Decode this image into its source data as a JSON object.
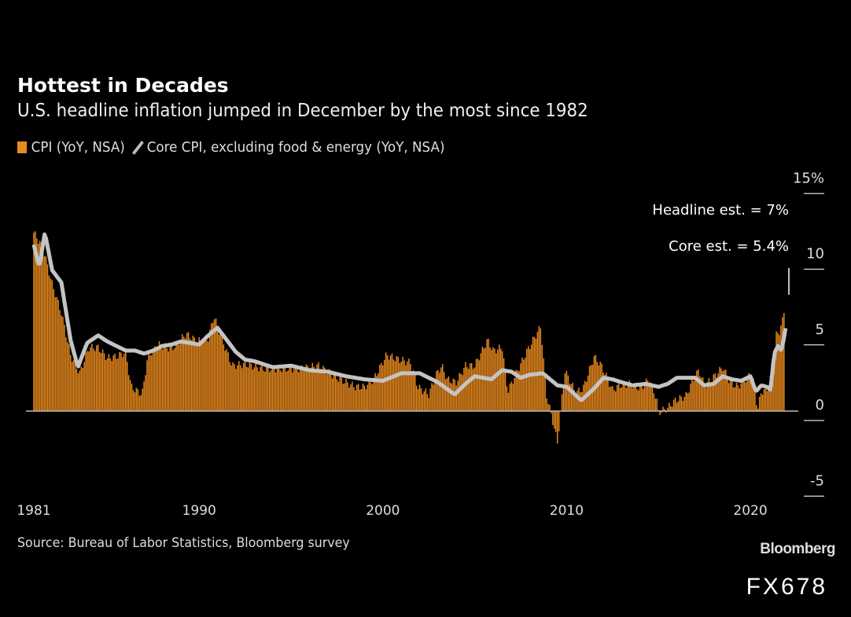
{
  "chart_data": {
    "type": "bar",
    "title": "Hottest in Decades",
    "subtitle": "U.S. headline inflation jumped in December by the most since 1982",
    "legend": {
      "placement": "top-left",
      "entries": [
        "CPI (YoY, NSA)",
        "Core CPI, excluding food & energy (YoY, NSA)"
      ]
    },
    "x_ticks": [
      "1981",
      "1990",
      "2000",
      "2010",
      "2020"
    ],
    "y_ticks": [
      "15%",
      "10",
      "5",
      "0",
      "-5"
    ],
    "xlim": [
      1981,
      2022
    ],
    "ylim": [
      -5,
      15
    ],
    "grid": false,
    "y_axis_side": "right",
    "colors": {
      "cpi": "#e8891e",
      "core": "#c4c4c4",
      "background": "#000000"
    },
    "series": [
      {
        "name": "CPI (YoY, NSA)",
        "type": "bar",
        "points": [
          [
            1981.0,
            11.8
          ],
          [
            1981.5,
            10.8
          ],
          [
            1982.0,
            8.4
          ],
          [
            1982.5,
            6.5
          ],
          [
            1983.0,
            3.7
          ],
          [
            1983.5,
            2.5
          ],
          [
            1984.0,
            4.2
          ],
          [
            1984.5,
            4.2
          ],
          [
            1985.0,
            3.5
          ],
          [
            1985.5,
            3.6
          ],
          [
            1986.0,
            3.9
          ],
          [
            1986.3,
            1.6
          ],
          [
            1986.9,
            1.1
          ],
          [
            1987.2,
            3.6
          ],
          [
            1987.8,
            4.4
          ],
          [
            1988.5,
            4.1
          ],
          [
            1989.3,
            5.1
          ],
          [
            1989.9,
            4.6
          ],
          [
            1990.5,
            4.8
          ],
          [
            1990.8,
            6.3
          ],
          [
            1991.2,
            4.9
          ],
          [
            1991.8,
            3.0
          ],
          [
            1992.5,
            3.1
          ],
          [
            1993.5,
            2.8
          ],
          [
            1994.5,
            2.8
          ],
          [
            1995.5,
            2.8
          ],
          [
            1996.5,
            3.0
          ],
          [
            1997.5,
            2.2
          ],
          [
            1998.5,
            1.6
          ],
          [
            1999.0,
            1.6
          ],
          [
            1999.5,
            2.1
          ],
          [
            2000.2,
            3.7
          ],
          [
            2000.9,
            3.4
          ],
          [
            2001.5,
            3.2
          ],
          [
            2001.9,
            1.6
          ],
          [
            2002.5,
            1.1
          ],
          [
            2002.9,
            2.4
          ],
          [
            2003.2,
            3.0
          ],
          [
            2003.5,
            2.1
          ],
          [
            2004.0,
            1.9
          ],
          [
            2004.5,
            3.0
          ],
          [
            2005.0,
            3.0
          ],
          [
            2005.7,
            4.7
          ],
          [
            2006.0,
            4.0
          ],
          [
            2006.5,
            4.2
          ],
          [
            2006.8,
            1.3
          ],
          [
            2007.3,
            2.6
          ],
          [
            2007.9,
            4.1
          ],
          [
            2008.6,
            5.6
          ],
          [
            2008.9,
            1.1
          ],
          [
            2009.2,
            -0.4
          ],
          [
            2009.5,
            -2.1
          ],
          [
            2009.9,
            2.7
          ],
          [
            2010.5,
            1.2
          ],
          [
            2010.9,
            1.5
          ],
          [
            2011.5,
            3.6
          ],
          [
            2011.9,
            3.0
          ],
          [
            2012.5,
            1.4
          ],
          [
            2012.9,
            1.7
          ],
          [
            2013.5,
            1.8
          ],
          [
            2014.0,
            1.5
          ],
          [
            2014.5,
            2.1
          ],
          [
            2014.9,
            0.8
          ],
          [
            2015.0,
            -0.1
          ],
          [
            2015.5,
            0.2
          ],
          [
            2015.9,
            0.7
          ],
          [
            2016.5,
            1.0
          ],
          [
            2016.9,
            2.1
          ],
          [
            2017.2,
            2.7
          ],
          [
            2017.5,
            1.7
          ],
          [
            2017.9,
            2.1
          ],
          [
            2018.5,
            2.9
          ],
          [
            2018.9,
            1.9
          ],
          [
            2019.3,
            1.6
          ],
          [
            2019.9,
            2.3
          ],
          [
            2020.1,
            2.5
          ],
          [
            2020.4,
            0.1
          ],
          [
            2020.6,
            1.3
          ],
          [
            2020.9,
            1.4
          ],
          [
            2021.2,
            2.6
          ],
          [
            2021.4,
            5.0
          ],
          [
            2021.6,
            5.3
          ],
          [
            2021.8,
            6.2
          ],
          [
            2021.85,
            6.8
          ]
        ]
      },
      {
        "name": "Core CPI, excluding food & energy (YoY, NSA)",
        "type": "line",
        "points": [
          [
            1981.0,
            11.0
          ],
          [
            1981.3,
            9.5
          ],
          [
            1981.6,
            11.8
          ],
          [
            1982.0,
            9.3
          ],
          [
            1982.5,
            8.5
          ],
          [
            1983.0,
            4.7
          ],
          [
            1983.4,
            2.9
          ],
          [
            1983.9,
            4.5
          ],
          [
            1984.5,
            5.0
          ],
          [
            1985.0,
            4.6
          ],
          [
            1985.5,
            4.3
          ],
          [
            1986.0,
            4.0
          ],
          [
            1986.5,
            4.0
          ],
          [
            1987.0,
            3.8
          ],
          [
            1987.5,
            4.0
          ],
          [
            1988.0,
            4.3
          ],
          [
            1988.5,
            4.4
          ],
          [
            1989.0,
            4.6
          ],
          [
            1989.5,
            4.5
          ],
          [
            1990.0,
            4.4
          ],
          [
            1990.5,
            5.0
          ],
          [
            1991.0,
            5.5
          ],
          [
            1991.5,
            4.7
          ],
          [
            1992.0,
            3.9
          ],
          [
            1992.5,
            3.4
          ],
          [
            1993.0,
            3.3
          ],
          [
            1994.0,
            2.9
          ],
          [
            1995.0,
            3.0
          ],
          [
            1996.0,
            2.7
          ],
          [
            1997.0,
            2.6
          ],
          [
            1998.0,
            2.3
          ],
          [
            1999.0,
            2.1
          ],
          [
            2000.0,
            2.0
          ],
          [
            2001.0,
            2.5
          ],
          [
            2002.0,
            2.5
          ],
          [
            2002.5,
            2.2
          ],
          [
            2003.0,
            1.9
          ],
          [
            2003.9,
            1.1
          ],
          [
            2004.5,
            1.8
          ],
          [
            2005.0,
            2.3
          ],
          [
            2005.9,
            2.1
          ],
          [
            2006.5,
            2.7
          ],
          [
            2007.0,
            2.6
          ],
          [
            2007.5,
            2.2
          ],
          [
            2008.0,
            2.4
          ],
          [
            2008.7,
            2.5
          ],
          [
            2009.5,
            1.7
          ],
          [
            2010.0,
            1.6
          ],
          [
            2010.8,
            0.7
          ],
          [
            2011.5,
            1.5
          ],
          [
            2012.0,
            2.2
          ],
          [
            2012.5,
            2.1
          ],
          [
            2013.0,
            1.9
          ],
          [
            2013.6,
            1.7
          ],
          [
            2014.3,
            1.8
          ],
          [
            2015.0,
            1.6
          ],
          [
            2015.5,
            1.8
          ],
          [
            2016.0,
            2.2
          ],
          [
            2016.5,
            2.2
          ],
          [
            2017.0,
            2.2
          ],
          [
            2017.5,
            1.7
          ],
          [
            2018.0,
            1.8
          ],
          [
            2018.5,
            2.3
          ],
          [
            2019.0,
            2.1
          ],
          [
            2019.5,
            2.0
          ],
          [
            2020.0,
            2.3
          ],
          [
            2020.3,
            1.3
          ],
          [
            2020.6,
            1.7
          ],
          [
            2020.9,
            1.6
          ],
          [
            2021.1,
            1.4
          ],
          [
            2021.3,
            3.8
          ],
          [
            2021.5,
            4.3
          ],
          [
            2021.7,
            4.0
          ],
          [
            2021.85,
            5.0
          ],
          [
            2021.92,
            5.5
          ]
        ]
      }
    ],
    "annotations": [
      "Headline est. = 7%",
      "Core est. = 5.4%"
    ]
  },
  "footer": {
    "source": "Source: Bureau of Labor Statistics, Bloomberg survey",
    "brand": "Bloomberg",
    "watermark": "FX678"
  }
}
